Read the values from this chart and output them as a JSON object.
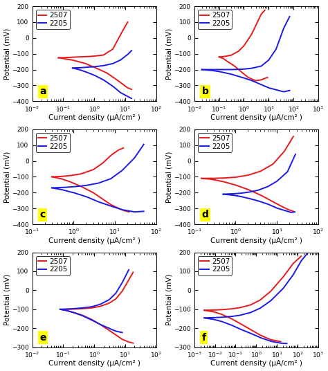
{
  "panels": [
    {
      "label": "a",
      "xlim": [
        0.01,
        100
      ],
      "ylim": [
        -400,
        200
      ],
      "xlabel": "Current density (μA/cm² )",
      "ylabel": "Potential (mV)",
      "yticks": [
        -400,
        -300,
        -200,
        -100,
        0,
        100,
        200
      ],
      "red_curve": {
        "anodic_x": [
          0.07,
          0.1,
          0.15,
          0.3,
          0.6,
          1.0,
          2.0,
          4.0,
          7.0,
          12.0
        ],
        "anodic_y": [
          -125,
          -125,
          -123,
          -120,
          -118,
          -115,
          -108,
          -70,
          20,
          100
        ],
        "cathodic_x": [
          0.07,
          0.1,
          0.2,
          0.5,
          1.0,
          2.5,
          5.0,
          8.0,
          12.0,
          16.0
        ],
        "cathodic_y": [
          -125,
          -130,
          -140,
          -160,
          -185,
          -220,
          -260,
          -290,
          -315,
          -325
        ]
      },
      "blue_curve": {
        "anodic_x": [
          0.2,
          0.3,
          0.5,
          1.0,
          2.0,
          4.0,
          7.0,
          12.0,
          16.0
        ],
        "anodic_y": [
          -190,
          -189,
          -186,
          -182,
          -175,
          -162,
          -140,
          -105,
          -80
        ],
        "cathodic_x": [
          0.2,
          0.3,
          0.5,
          1.0,
          2.0,
          4.0,
          7.0,
          12.0,
          16.0
        ],
        "cathodic_y": [
          -190,
          -198,
          -212,
          -235,
          -265,
          -305,
          -345,
          -370,
          -382
        ]
      }
    },
    {
      "label": "b",
      "xlim": [
        0.01,
        1000
      ],
      "ylim": [
        -400,
        200
      ],
      "xlabel": "Current density (μA/cm² )",
      "ylabel": "Potential (mV)",
      "yticks": [
        -400,
        -300,
        -200,
        -100,
        0,
        100,
        200
      ],
      "red_curve": {
        "anodic_x": [
          0.1,
          0.15,
          0.3,
          0.6,
          1.0,
          2.0,
          3.5,
          5.0,
          7.0
        ],
        "anodic_y": [
          -120,
          -118,
          -110,
          -85,
          -50,
          20,
          100,
          150,
          175
        ],
        "cathodic_x": [
          0.1,
          0.15,
          0.2,
          0.4,
          0.8,
          1.5,
          3.0,
          5.0,
          7.0,
          9.0
        ],
        "cathodic_y": [
          -120,
          -130,
          -145,
          -175,
          -215,
          -250,
          -270,
          -265,
          -255,
          -250
        ]
      },
      "blue_curve": {
        "anodic_x": [
          0.02,
          0.05,
          0.1,
          0.3,
          0.8,
          2.0,
          5.0,
          10.0,
          20.0,
          40.0,
          70.0
        ],
        "anodic_y": [
          -200,
          -200,
          -200,
          -200,
          -198,
          -192,
          -178,
          -140,
          -70,
          60,
          135
        ],
        "cathodic_x": [
          0.02,
          0.05,
          0.1,
          0.3,
          0.8,
          2.0,
          5.0,
          10.0,
          20.0,
          40.0,
          70.0
        ],
        "cathodic_y": [
          -200,
          -205,
          -212,
          -228,
          -248,
          -268,
          -295,
          -315,
          -328,
          -340,
          -332
        ]
      }
    },
    {
      "label": "c",
      "xlim": [
        0.1,
        100
      ],
      "ylim": [
        -400,
        200
      ],
      "xlabel": "Current density (μA/cm² )",
      "ylabel": "Potential (mV)",
      "yticks": [
        -400,
        -300,
        -200,
        -100,
        0,
        100,
        200
      ],
      "red_curve": {
        "anodic_x": [
          0.3,
          0.5,
          0.8,
          1.5,
          3.0,
          5.0,
          8.0,
          12.0,
          16.0
        ],
        "anodic_y": [
          -100,
          -98,
          -93,
          -82,
          -55,
          -15,
          35,
          68,
          82
        ],
        "cathodic_x": [
          0.3,
          0.5,
          0.8,
          1.5,
          3.0,
          5.0,
          8.0,
          12.0,
          16.0,
          22.0
        ],
        "cathodic_y": [
          -100,
          -112,
          -130,
          -160,
          -200,
          -240,
          -276,
          -298,
          -312,
          -322
        ]
      },
      "blue_curve": {
        "anodic_x": [
          0.3,
          0.5,
          1.0,
          2.0,
          4.0,
          8.0,
          15.0,
          30.0,
          50.0
        ],
        "anodic_y": [
          -170,
          -168,
          -163,
          -155,
          -140,
          -112,
          -60,
          20,
          105
        ],
        "cathodic_x": [
          0.3,
          0.5,
          1.0,
          2.0,
          4.0,
          8.0,
          15.0,
          30.0,
          50.0
        ],
        "cathodic_y": [
          -170,
          -180,
          -200,
          -225,
          -258,
          -285,
          -308,
          -322,
          -318
        ]
      }
    },
    {
      "label": "d",
      "xlim": [
        0.1,
        100
      ],
      "ylim": [
        -400,
        200
      ],
      "xlabel": "Current density (μA/cm² )",
      "ylabel": "Potential (mV)",
      "yticks": [
        -400,
        -300,
        -200,
        -100,
        0,
        100,
        200
      ],
      "red_curve": {
        "anodic_x": [
          0.15,
          0.25,
          0.5,
          1.0,
          2.0,
          4.0,
          8.0,
          15.0,
          25.0
        ],
        "anodic_y": [
          -110,
          -110,
          -108,
          -103,
          -90,
          -65,
          -20,
          60,
          155
        ],
        "cathodic_x": [
          0.15,
          0.25,
          0.5,
          1.0,
          2.0,
          4.0,
          8.0,
          15.0,
          20.0,
          25.0
        ],
        "cathodic_y": [
          -110,
          -115,
          -130,
          -152,
          -180,
          -215,
          -258,
          -295,
          -310,
          -318
        ]
      },
      "blue_curve": {
        "anodic_x": [
          0.5,
          0.8,
          1.2,
          2.0,
          3.5,
          6.0,
          10.0,
          18.0,
          28.0
        ],
        "anodic_y": [
          -210,
          -208,
          -205,
          -198,
          -185,
          -162,
          -128,
          -68,
          42
        ],
        "cathodic_x": [
          0.5,
          0.8,
          1.2,
          2.0,
          3.5,
          6.0,
          10.0,
          18.0,
          22.0,
          27.0
        ],
        "cathodic_y": [
          -210,
          -215,
          -222,
          -235,
          -252,
          -272,
          -298,
          -318,
          -325,
          -322
        ]
      }
    },
    {
      "label": "e",
      "xlim": [
        0.01,
        100
      ],
      "ylim": [
        -300,
        200
      ],
      "xlabel": "Current density (μA/cm² )",
      "ylabel": "Potential (mV)",
      "yticks": [
        -300,
        -200,
        -100,
        0,
        100,
        200
      ],
      "red_curve": {
        "anodic_x": [
          0.08,
          0.12,
          0.2,
          0.4,
          0.8,
          1.5,
          3.0,
          5.0,
          8.0,
          13.0,
          18.0
        ],
        "anodic_y": [
          -100,
          -100,
          -99,
          -97,
          -93,
          -85,
          -68,
          -45,
          -5,
          55,
          95
        ],
        "cathodic_x": [
          0.08,
          0.12,
          0.2,
          0.4,
          0.8,
          1.5,
          3.0,
          5.0,
          8.0,
          13.0,
          18.0
        ],
        "cathodic_y": [
          -100,
          -105,
          -115,
          -130,
          -152,
          -178,
          -210,
          -235,
          -258,
          -272,
          -278
        ]
      },
      "blue_curve": {
        "anodic_x": [
          0.08,
          0.12,
          0.2,
          0.4,
          0.8,
          1.5,
          3.0,
          5.0,
          8.0,
          13.0
        ],
        "anodic_y": [
          -100,
          -99,
          -97,
          -93,
          -87,
          -75,
          -50,
          -15,
          40,
          108
        ],
        "cathodic_x": [
          0.08,
          0.12,
          0.2,
          0.4,
          0.8,
          1.5,
          3.0,
          5.0,
          8.0
        ],
        "cathodic_y": [
          -100,
          -105,
          -115,
          -132,
          -155,
          -178,
          -200,
          -215,
          -222
        ]
      }
    },
    {
      "label": "f",
      "xlim": [
        0.001,
        1000
      ],
      "ylim": [
        -300,
        200
      ],
      "xlabel": "Current density (μA/cm² )",
      "ylabel": "Potential (mV)",
      "yticks": [
        -300,
        -200,
        -100,
        0,
        100,
        200
      ],
      "red_curve": {
        "anodic_x": [
          0.003,
          0.008,
          0.02,
          0.06,
          0.15,
          0.5,
          1.5,
          5.0,
          20.0,
          60.0,
          150.0
        ],
        "anodic_y": [
          -105,
          -104,
          -102,
          -98,
          -92,
          -78,
          -52,
          -5,
          70,
          140,
          180
        ],
        "cathodic_x": [
          0.003,
          0.008,
          0.02,
          0.06,
          0.15,
          0.5,
          1.5,
          5.0,
          15.0
        ],
        "cathodic_y": [
          -105,
          -112,
          -125,
          -148,
          -172,
          -205,
          -235,
          -260,
          -270
        ]
      },
      "blue_curve": {
        "anodic_x": [
          0.003,
          0.008,
          0.02,
          0.06,
          0.15,
          0.5,
          1.5,
          5.0,
          20.0,
          60.0,
          150.0,
          300.0
        ],
        "anodic_y": [
          -145,
          -144,
          -142,
          -138,
          -132,
          -118,
          -95,
          -55,
          10,
          80,
          155,
          195
        ],
        "cathodic_x": [
          0.003,
          0.008,
          0.02,
          0.06,
          0.15,
          0.5,
          1.5,
          5.0,
          15.0,
          30.0
        ],
        "cathodic_y": [
          -145,
          -152,
          -163,
          -182,
          -202,
          -225,
          -248,
          -268,
          -278,
          -280
        ]
      }
    }
  ],
  "red_color": "#e8191a",
  "blue_color": "#1a19e8",
  "legend_labels": [
    "2507",
    "2205"
  ],
  "label_bg": "#ffff00",
  "label_fontsize": 10,
  "tick_fontsize": 6.5,
  "axis_label_fontsize": 7.5,
  "legend_fontsize": 7.5,
  "linewidth": 1.4
}
